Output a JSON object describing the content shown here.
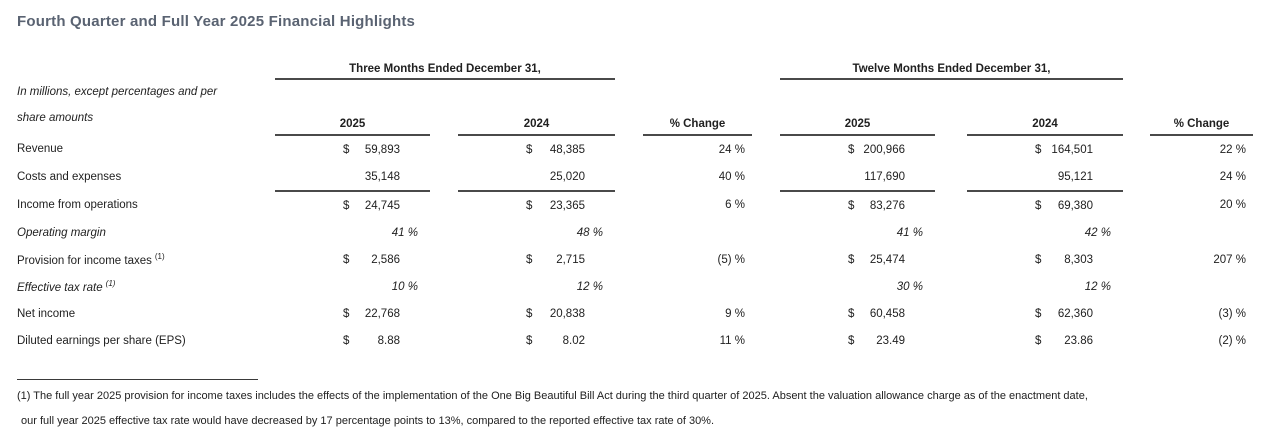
{
  "title": "Fourth Quarter and Full Year 2025 Financial Highlights",
  "colors": {
    "title_text": "#5a6372",
    "body_text": "#212121",
    "rule_line": "#4a4a4a"
  },
  "table": {
    "unit_note_line1": "In millions, except percentages and per",
    "unit_note_line2": "share amounts",
    "sections": [
      {
        "period_label": "Three Months Ended December 31,",
        "col_2025": "2025",
        "col_2024": "2024",
        "pct_change": "% Change"
      },
      {
        "period_label": "Twelve Months Ended December 31,",
        "col_2025": "2025",
        "col_2024": "2024",
        "pct_change": "% Change"
      }
    ],
    "rows": [
      {
        "label": "Revenue",
        "d1": "$",
        "v1": "59,893",
        "d2": "$",
        "v2": "48,385",
        "c1": "24 %",
        "d3": "$",
        "v3": "200,966",
        "d4": "$",
        "v4": "164,501",
        "c2": "22 %"
      },
      {
        "label": "Costs and expenses",
        "v1": "35,148",
        "v2": "25,020",
        "c1": "40 %",
        "v3": "117,690",
        "v4": "95,121",
        "c2": "24 %"
      },
      {
        "label": "Income from operations",
        "d1": "$",
        "v1": "24,745",
        "d2": "$",
        "v2": "23,365",
        "c1": "6 %",
        "d3": "$",
        "v3": "83,276",
        "d4": "$",
        "v4": "69,380",
        "c2": "20 %"
      },
      {
        "label": "Operating margin",
        "v1": "41 %",
        "v2": "48 %",
        "v3": "41 %",
        "v4": "42 %"
      },
      {
        "label": "Provision for income taxes",
        "sup": "(1)",
        "d1": "$",
        "v1": "2,586",
        "d2": "$",
        "v2": "2,715",
        "c1": "(5) %",
        "d3": "$",
        "v3": "25,474",
        "d4": "$",
        "v4": "8,303",
        "c2": "207 %"
      },
      {
        "label": "Effective tax rate",
        "sup": "(1)",
        "v1": "10 %",
        "v2": "12 %",
        "v3": "30 %",
        "v4": "12 %"
      },
      {
        "label": "Net income",
        "d1": "$",
        "v1": "22,768",
        "d2": "$",
        "v2": "20,838",
        "c1": "9 %",
        "d3": "$",
        "v3": "60,458",
        "d4": "$",
        "v4": "62,360",
        "c2": "(3) %"
      },
      {
        "label": "Diluted earnings per share (EPS)",
        "d1": "$",
        "v1": "8.88",
        "d2": "$",
        "v2": "8.02",
        "c1": "11 %",
        "d3": "$",
        "v3": "23.49",
        "d4": "$",
        "v4": "23.86",
        "c2": "(2) %"
      }
    ]
  },
  "footnote": {
    "line1": "(1) The full year 2025 provision for income taxes includes the effects of the implementation of the One Big Beautiful Bill Act during the third quarter of 2025. Absent the valuation allowance charge as of the enactment date,",
    "line2": "our full year 2025 effective tax rate would have decreased by 17 percentage points to 13%, compared to the reported effective tax rate of 30%."
  }
}
